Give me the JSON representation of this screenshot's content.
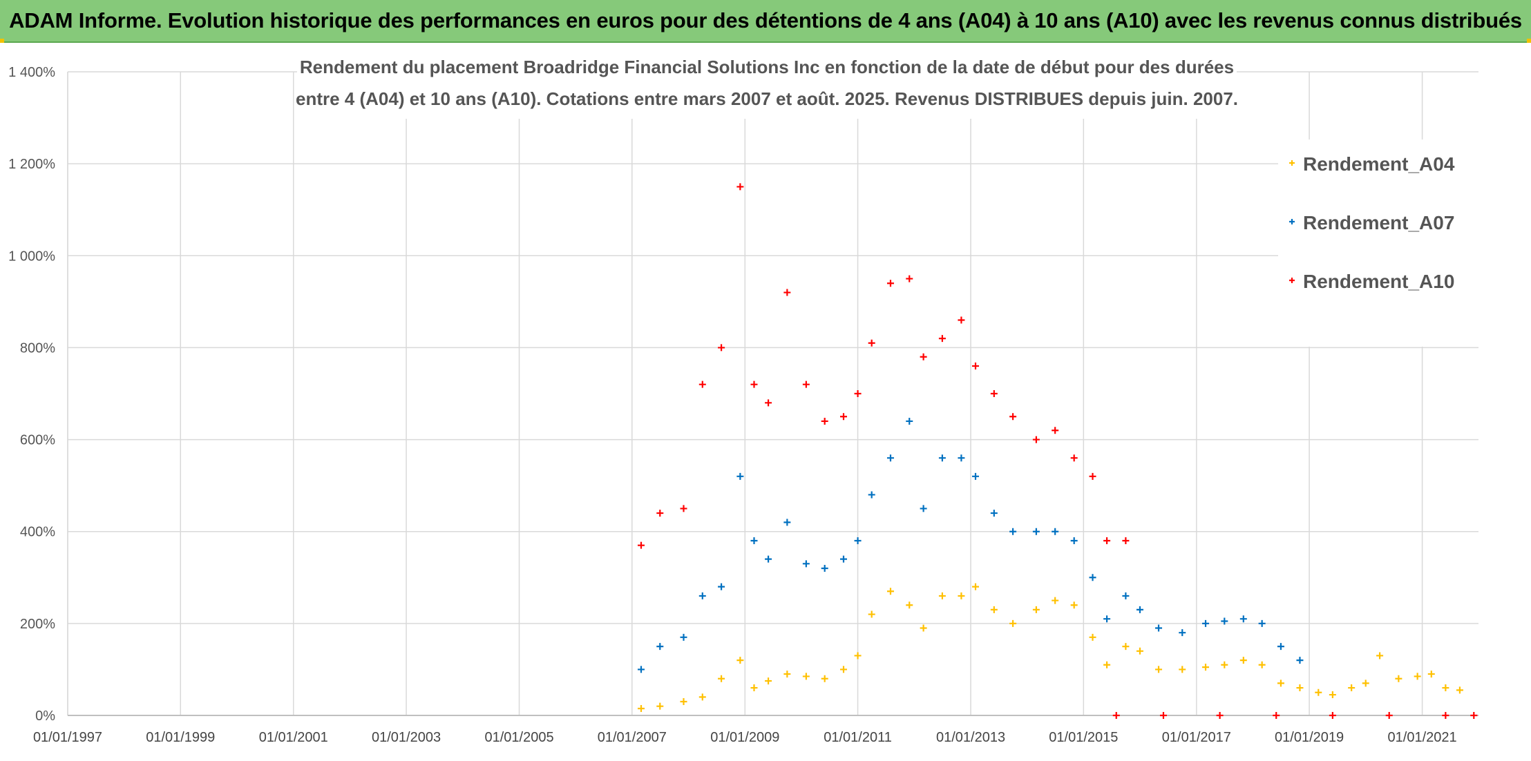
{
  "banner": {
    "title": "ADAM Informe. Evolution historique des performances en euros pour des détentions de 4 ans (A04) à 10 ans (A10) avec les revenus connus distribués"
  },
  "chart_data": {
    "type": "scatter",
    "title_lines": [
      "Rendement du placement Broadridge Financial Solutions Inc en fonction de la date de début pour des durées",
      "entre 4 (A04) et 10 ans (A10). Cotations entre mars 2007 et août. 2025. Revenus DISTRIBUES depuis juin. 2007."
    ],
    "x_axis": {
      "type": "date",
      "range": [
        "1997-01-01",
        "2021-12-31"
      ],
      "tick_labels": [
        "01/01/1997",
        "01/01/1999",
        "01/01/2001",
        "01/01/2003",
        "01/01/2005",
        "01/01/2007",
        "01/01/2009",
        "01/01/2011",
        "01/01/2013",
        "01/01/2015",
        "01/01/2017",
        "01/01/2019",
        "01/01/2021"
      ]
    },
    "y_axis": {
      "range": [
        0,
        1400
      ],
      "unit": "%",
      "tick_labels": [
        "0%",
        "200%",
        "400%",
        "600%",
        "800%",
        "1 000%",
        "1 200%",
        "1 400%"
      ]
    },
    "grid": true,
    "legend_position": "right",
    "series": [
      {
        "name": "Rendement_A04",
        "color": "#ffc000",
        "points": [
          [
            "2007-03-01",
            15
          ],
          [
            "2007-07-01",
            20
          ],
          [
            "2007-12-01",
            30
          ],
          [
            "2008-04-01",
            40
          ],
          [
            "2008-08-01",
            80
          ],
          [
            "2008-12-01",
            120
          ],
          [
            "2009-03-01",
            60
          ],
          [
            "2009-06-01",
            75
          ],
          [
            "2009-10-01",
            90
          ],
          [
            "2010-02-01",
            85
          ],
          [
            "2010-06-01",
            80
          ],
          [
            "2010-10-01",
            100
          ],
          [
            "2011-01-01",
            130
          ],
          [
            "2011-04-01",
            220
          ],
          [
            "2011-08-01",
            270
          ],
          [
            "2011-12-01",
            240
          ],
          [
            "2012-03-01",
            190
          ],
          [
            "2012-07-01",
            260
          ],
          [
            "2012-11-01",
            260
          ],
          [
            "2013-02-01",
            280
          ],
          [
            "2013-06-01",
            230
          ],
          [
            "2013-10-01",
            200
          ],
          [
            "2014-03-01",
            230
          ],
          [
            "2014-07-01",
            250
          ],
          [
            "2014-11-01",
            240
          ],
          [
            "2015-03-01",
            170
          ],
          [
            "2015-06-01",
            110
          ],
          [
            "2015-10-01",
            150
          ],
          [
            "2016-01-01",
            140
          ],
          [
            "2016-05-01",
            100
          ],
          [
            "2016-10-01",
            100
          ],
          [
            "2017-03-01",
            105
          ],
          [
            "2017-07-01",
            110
          ],
          [
            "2017-11-01",
            120
          ],
          [
            "2018-03-01",
            110
          ],
          [
            "2018-07-01",
            70
          ],
          [
            "2018-11-01",
            60
          ],
          [
            "2019-03-01",
            50
          ],
          [
            "2019-06-01",
            45
          ],
          [
            "2019-10-01",
            60
          ],
          [
            "2020-01-01",
            70
          ],
          [
            "2020-04-01",
            130
          ],
          [
            "2020-08-01",
            80
          ],
          [
            "2020-12-01",
            85
          ],
          [
            "2021-03-01",
            90
          ],
          [
            "2021-06-01",
            60
          ],
          [
            "2021-09-01",
            55
          ]
        ]
      },
      {
        "name": "Rendement_A07",
        "color": "#0070c0",
        "points": [
          [
            "2007-03-01",
            100
          ],
          [
            "2007-07-01",
            150
          ],
          [
            "2007-12-01",
            170
          ],
          [
            "2008-04-01",
            260
          ],
          [
            "2008-08-01",
            280
          ],
          [
            "2008-12-01",
            520
          ],
          [
            "2009-03-01",
            380
          ],
          [
            "2009-06-01",
            340
          ],
          [
            "2009-10-01",
            420
          ],
          [
            "2010-02-01",
            330
          ],
          [
            "2010-06-01",
            320
          ],
          [
            "2010-10-01",
            340
          ],
          [
            "2011-01-01",
            380
          ],
          [
            "2011-04-01",
            480
          ],
          [
            "2011-08-01",
            560
          ],
          [
            "2011-12-01",
            640
          ],
          [
            "2012-03-01",
            450
          ],
          [
            "2012-07-01",
            560
          ],
          [
            "2012-11-01",
            560
          ],
          [
            "2013-02-01",
            520
          ],
          [
            "2013-06-01",
            440
          ],
          [
            "2013-10-01",
            400
          ],
          [
            "2014-03-01",
            400
          ],
          [
            "2014-07-01",
            400
          ],
          [
            "2014-11-01",
            380
          ],
          [
            "2015-03-01",
            300
          ],
          [
            "2015-06-01",
            210
          ],
          [
            "2015-10-01",
            260
          ],
          [
            "2016-01-01",
            230
          ],
          [
            "2016-05-01",
            190
          ],
          [
            "2016-10-01",
            180
          ],
          [
            "2017-03-01",
            200
          ],
          [
            "2017-07-01",
            205
          ],
          [
            "2017-11-01",
            210
          ],
          [
            "2018-03-01",
            200
          ],
          [
            "2018-07-01",
            150
          ],
          [
            "2018-11-01",
            120
          ]
        ]
      },
      {
        "name": "Rendement_A10",
        "color": "#ff0000",
        "points": [
          [
            "2007-03-01",
            370
          ],
          [
            "2007-07-01",
            440
          ],
          [
            "2007-12-01",
            450
          ],
          [
            "2008-04-01",
            720
          ],
          [
            "2008-08-01",
            800
          ],
          [
            "2008-12-01",
            1150
          ],
          [
            "2009-03-01",
            720
          ],
          [
            "2009-06-01",
            680
          ],
          [
            "2009-10-01",
            920
          ],
          [
            "2010-02-01",
            720
          ],
          [
            "2010-06-01",
            640
          ],
          [
            "2010-10-01",
            650
          ],
          [
            "2011-01-01",
            700
          ],
          [
            "2011-04-01",
            810
          ],
          [
            "2011-08-01",
            940
          ],
          [
            "2011-12-01",
            950
          ],
          [
            "2012-03-01",
            780
          ],
          [
            "2012-07-01",
            820
          ],
          [
            "2012-11-01",
            860
          ],
          [
            "2013-02-01",
            760
          ],
          [
            "2013-06-01",
            700
          ],
          [
            "2013-10-01",
            650
          ],
          [
            "2014-03-01",
            600
          ],
          [
            "2014-07-01",
            620
          ],
          [
            "2014-11-01",
            560
          ],
          [
            "2015-03-01",
            520
          ],
          [
            "2015-06-01",
            380
          ],
          [
            "2015-10-01",
            380
          ],
          [
            "2015-08-01",
            0
          ],
          [
            "2016-06-01",
            0
          ],
          [
            "2017-06-01",
            0
          ],
          [
            "2018-06-01",
            0
          ],
          [
            "2019-06-01",
            0
          ],
          [
            "2020-06-01",
            0
          ],
          [
            "2021-06-01",
            0
          ],
          [
            "2021-12-01",
            0
          ]
        ]
      }
    ]
  }
}
